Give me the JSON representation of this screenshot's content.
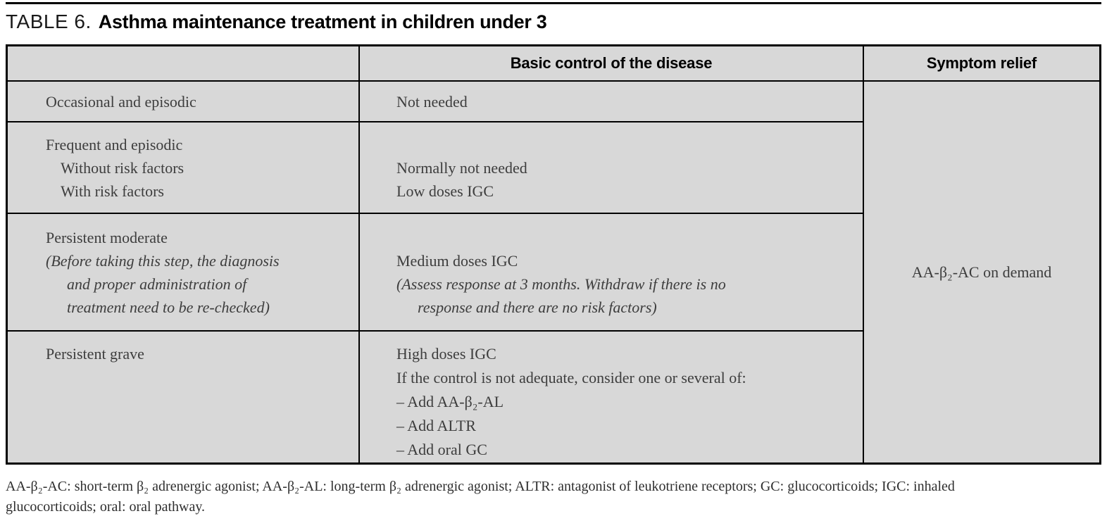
{
  "title": {
    "prefix": "TABLE 6.",
    "text": "Asthma maintenance treatment in children under 3"
  },
  "colors": {
    "cell_background": "#d8d8d8",
    "border": "#000000",
    "body_text": "#3d3d3d",
    "page_background": "#ffffff"
  },
  "table": {
    "header": {
      "col1": "",
      "col2": "Basic control of the disease",
      "col3": "Symptom relief"
    },
    "rows": [
      {
        "col1": [
          {
            "text": "Occasional and episodic"
          }
        ],
        "col2": [
          {
            "text": "Not needed"
          }
        ]
      },
      {
        "col1": [
          {
            "text": "Frequent and episodic"
          },
          {
            "text": "Without risk factors"
          },
          {
            "text": "With risk factors"
          }
        ],
        "col2": [
          {
            "text": ""
          },
          {
            "text": "Normally not needed"
          },
          {
            "text": "Low doses IGC"
          }
        ]
      },
      {
        "col1": [
          {
            "text": "Persistent moderate"
          },
          {
            "text": "(Before taking this step, the diagnosis"
          },
          {
            "text": "and proper administration of"
          },
          {
            "text": "treatment need to be re-checked)"
          }
        ],
        "col2": [
          {
            "text": ""
          },
          {
            "text": "Medium doses IGC"
          },
          {
            "text": "(Assess response at 3 months. Withdraw if there is no"
          },
          {
            "text": "response and there are no risk factors)"
          }
        ]
      },
      {
        "col1": [
          {
            "text": "Persistent grave"
          }
        ],
        "col2": [
          {
            "text": "High doses IGC"
          },
          {
            "text": "If the control is not adequate, consider one or several of:"
          },
          {
            "text": "– Add AA-β₂-AL"
          },
          {
            "text": "– Add ALTR"
          },
          {
            "text": "– Add oral GC"
          }
        ]
      }
    ],
    "symptom_relief_cell": "AA-β₂-AC on demand"
  },
  "footnote": {
    "line1": "AA-β₂-AC: short-term β₂ adrenergic agonist; AA-β₂-AL: long-term β₂ adrenergic agonist; ALTR: antagonist of leukotriene receptors; GC: glucocorticoids; IGC: inhaled",
    "line2": "glucocorticoids; oral: oral pathway."
  }
}
